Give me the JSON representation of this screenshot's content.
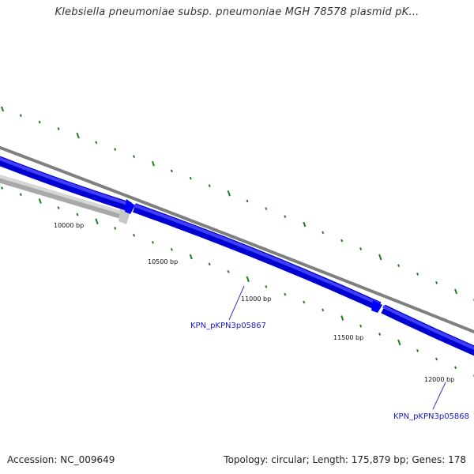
{
  "title": "Klebsiella pneumoniae subsp. pneumoniae MGH 78578 plasmid pK...",
  "footer": {
    "accession": "Accession: NC_009649",
    "summary": "Topology: circular; Length: 175,879 bp; Genes: 178"
  },
  "colors": {
    "backbone": "#7f7f7f",
    "gene_forward": "#0000ff",
    "gene_reverse": "#bdbdbd",
    "gc_ticks": "#1e7d1e",
    "label_line": "#3333cc",
    "gene_label": "#1a1acc"
  },
  "scale_labels": [
    "10000 bp",
    "10500 bp",
    "11000 bp",
    "11500 bp",
    "12000 bp"
  ],
  "gene_labels": [
    "KPN_pKPN3p05867",
    "KPN_pKPN3p05868"
  ]
}
